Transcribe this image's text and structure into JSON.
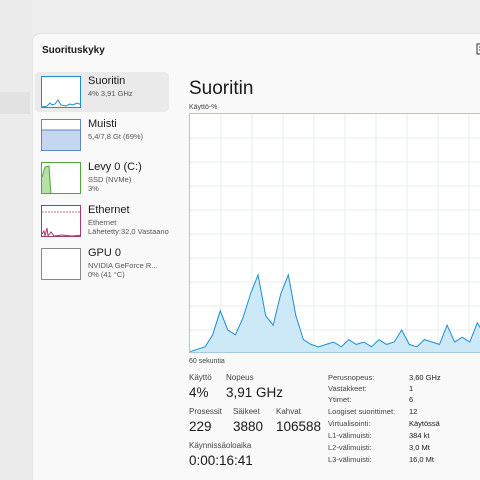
{
  "window": {
    "title": "Suorituskyky"
  },
  "sidebar": {
    "items": [
      {
        "name": "Suoritin",
        "sub1": "4% 3,91 GHz",
        "sub2": "",
        "sub3": "",
        "color": "#1a8fd1"
      },
      {
        "name": "Muisti",
        "sub1": "5,4/7,8 Gt (69%)",
        "sub2": "",
        "sub3": "",
        "color": "#5b87c9"
      },
      {
        "name": "Levy 0 (C:)",
        "sub1": "SSD (NVMe)",
        "sub2": "3%",
        "sub3": "",
        "color": "#4da83a"
      },
      {
        "name": "Ethernet",
        "sub1": "Ethernet",
        "sub2": "Lähetetty:32,0 Vastaano",
        "sub3": "",
        "color": "#a33c6e"
      },
      {
        "name": "GPU 0",
        "sub1": "NVIDIA GeForce R...",
        "sub2": "0% (41 °C)",
        "sub3": "",
        "color": "#888888"
      }
    ]
  },
  "main": {
    "title": "Suoritin",
    "y_label": "Käyttö-%",
    "x_label": "60 sekuntia",
    "usage_percent": 4,
    "stats": {
      "kaytto_label": "Käyttö",
      "kaytto_value": "4%",
      "nopeus_label": "Nopeus",
      "nopeus_value": "3,91 GHz",
      "prosessit_label": "Prosessit",
      "prosessit_value": "229",
      "saikeet_label": "Säikeet",
      "saikeet_value": "3880",
      "kahvat_label": "Kahvat",
      "kahvat_value": "106588",
      "kaynnissa_label": "Käynnissäoloaika",
      "kaynnissa_value": "0:00:16:41"
    },
    "info": [
      {
        "key": "Perusnopeus:",
        "value": "3,60 GHz"
      },
      {
        "key": "Vastakkeet:",
        "value": "1"
      },
      {
        "key": "Ytimet:",
        "value": "6"
      },
      {
        "key": "Loogiset suorittimet:",
        "value": "12"
      },
      {
        "key": "Virtualisointi:",
        "value": "Käytössä"
      },
      {
        "key": "L1-välimuisti:",
        "value": "384 kt"
      },
      {
        "key": "L2-välimuisti:",
        "value": "3,0 Mt"
      },
      {
        "key": "L3-välimuisti:",
        "value": "16,0 Mt"
      }
    ],
    "cpu_history": [
      1,
      2,
      3,
      8,
      18,
      10,
      8,
      15,
      25,
      33,
      16,
      12,
      25,
      33,
      16,
      6,
      4,
      3,
      4,
      5,
      3,
      6,
      4,
      5,
      3,
      6,
      4,
      5,
      10,
      4,
      3,
      6,
      5,
      4,
      12,
      5,
      7,
      5,
      13,
      8,
      4,
      6
    ]
  },
  "colors": {
    "cpu_line": "#1a8fd1",
    "cpu_fill": "#cde8f7",
    "grid": "#e6eef3"
  }
}
